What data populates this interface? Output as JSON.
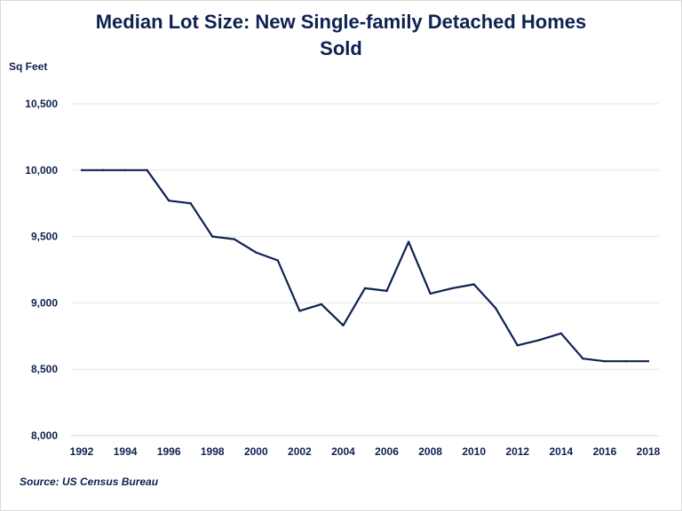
{
  "chart_data": {
    "type": "line",
    "title_line1": "Median Lot Size: New Single-family Detached Homes",
    "title_line2": "Sold",
    "ylabel": "Sq Feet",
    "source": "Source: US Census Bureau",
    "ylim": [
      8000,
      10500
    ],
    "yticks": [
      8000,
      8500,
      9000,
      9500,
      10000,
      10500
    ],
    "ytick_labels": [
      "8,000",
      "8,500",
      "9,000",
      "9,500",
      "10,000",
      "10,500"
    ],
    "xlim": [
      1992,
      2018
    ],
    "xticks": [
      1992,
      1994,
      1996,
      1998,
      2000,
      2002,
      2004,
      2006,
      2008,
      2010,
      2012,
      2014,
      2016,
      2018
    ],
    "grid": true,
    "line_color": "#0e2250",
    "x": [
      1992,
      1993,
      1994,
      1995,
      1996,
      1997,
      1998,
      1999,
      2000,
      2001,
      2002,
      2003,
      2004,
      2005,
      2006,
      2007,
      2008,
      2009,
      2010,
      2011,
      2012,
      2013,
      2014,
      2015,
      2016,
      2017,
      2018
    ],
    "y": [
      10000,
      10000,
      10000,
      10000,
      9770,
      9750,
      9500,
      9480,
      9380,
      9320,
      8940,
      8990,
      8830,
      9110,
      9090,
      9460,
      9070,
      9110,
      9140,
      8960,
      8680,
      8720,
      8770,
      8580,
      8560,
      8560,
      8560
    ]
  }
}
